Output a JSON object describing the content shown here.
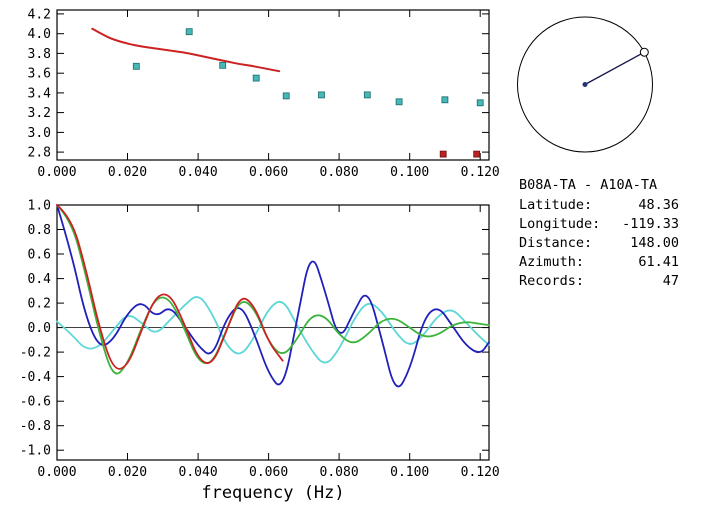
{
  "info": {
    "pair": "B08A-TA - A10A-TA",
    "rows": [
      {
        "label": "Latitude:",
        "value": "48.36"
      },
      {
        "label": "Longitude:",
        "value": "-119.33"
      },
      {
        "label": "Distance:",
        "value": "148.00"
      },
      {
        "label": "Azimuth:",
        "value": "61.41"
      },
      {
        "label": "Records:",
        "value": "47"
      }
    ]
  },
  "chart_data": [
    {
      "type": "scatter",
      "title": "",
      "xlabel": "",
      "ylabel": "",
      "xlim": [
        0,
        0.1225
      ],
      "ylim": [
        2.72,
        4.24
      ],
      "xticks": [
        0,
        0.02,
        0.04,
        0.06,
        0.08,
        0.1,
        0.12
      ],
      "xtick_labels": [
        "0.000",
        "0.020",
        "0.040",
        "0.060",
        "0.080",
        "0.100",
        "0.120"
      ],
      "yticks": [
        2.8,
        3.0,
        3.2,
        3.4,
        3.6,
        3.8,
        4.0,
        4.2
      ],
      "ytick_labels": [
        "2.8",
        "3.0",
        "3.2",
        "3.4",
        "3.6",
        "3.8",
        "4.0",
        "4.2"
      ],
      "grid": false,
      "series": [
        {
          "name": "velocity-picks",
          "kind": "scatter",
          "marker": "square",
          "color": "#46b8b8",
          "edge": "#1c6a6a",
          "x": [
            0.0225,
            0.0375,
            0.047,
            0.0565,
            0.065,
            0.075,
            0.088,
            0.097,
            0.11,
            0.12
          ],
          "y": [
            3.67,
            4.02,
            3.68,
            3.55,
            3.37,
            3.38,
            3.38,
            3.31,
            3.33,
            3.3
          ]
        },
        {
          "name": "reference-dispersion-curve",
          "kind": "line",
          "color": "#cc2222",
          "width": 2,
          "x": [
            0.01,
            0.013,
            0.016,
            0.02,
            0.024,
            0.028,
            0.032,
            0.036,
            0.04,
            0.044,
            0.048,
            0.052,
            0.056,
            0.06,
            0.063
          ],
          "y": [
            4.05,
            3.99,
            3.94,
            3.9,
            3.87,
            3.85,
            3.83,
            3.81,
            3.78,
            3.75,
            3.72,
            3.69,
            3.67,
            3.64,
            3.62
          ]
        },
        {
          "name": "rejected-picks",
          "kind": "scatter",
          "marker": "square",
          "color": "#bb2222",
          "edge": "#701010",
          "x": [
            0.1095,
            0.119
          ],
          "y": [
            2.78,
            2.78
          ]
        }
      ]
    },
    {
      "type": "line",
      "title": "",
      "xlabel": "frequency (Hz)",
      "ylabel": "",
      "xlim": [
        0,
        0.1225
      ],
      "ylim": [
        -1.08,
        1.0
      ],
      "xticks": [
        0,
        0.02,
        0.04,
        0.06,
        0.08,
        0.1,
        0.12
      ],
      "xtick_labels": [
        "0.000",
        "0.020",
        "0.040",
        "0.060",
        "0.080",
        "0.100",
        "0.120"
      ],
      "yticks": [
        -1.0,
        -0.8,
        -0.6,
        -0.4,
        -0.2,
        0.0,
        0.2,
        0.4,
        0.6,
        0.8,
        1.0
      ],
      "ytick_labels": [
        "-1.0",
        "-0.8",
        "-0.6",
        "-0.4",
        "-0.2",
        "0.0",
        "0.2",
        "0.4",
        "0.6",
        "0.8",
        "1.0"
      ],
      "zero_line": true,
      "grid": false,
      "series": [
        {
          "name": "waveform-cyan",
          "kind": "line",
          "color": "#5cd6d6",
          "width": 1.8,
          "x": [
            0,
            0.004,
            0.008,
            0.012,
            0.016,
            0.02,
            0.024,
            0.028,
            0.032,
            0.036,
            0.04,
            0.044,
            0.048,
            0.052,
            0.056,
            0.06,
            0.064,
            0.068,
            0.072,
            0.076,
            0.08,
            0.084,
            0.088,
            0.092,
            0.096,
            0.1,
            0.104,
            0.108,
            0.112,
            0.116,
            0.12,
            0.1225
          ],
          "y": [
            0.05,
            -0.05,
            -0.18,
            -0.16,
            -0.02,
            0.12,
            0.04,
            -0.06,
            0.06,
            0.18,
            0.28,
            0.12,
            -0.15,
            -0.24,
            -0.08,
            0.16,
            0.24,
            0.02,
            -0.18,
            -0.32,
            -0.18,
            0.06,
            0.22,
            0.14,
            -0.04,
            -0.16,
            -0.06,
            0.1,
            0.16,
            0.04,
            -0.08,
            -0.14
          ]
        },
        {
          "name": "waveform-blue",
          "kind": "line",
          "color": "#2020bb",
          "width": 1.8,
          "x": [
            0,
            0.004,
            0.008,
            0.012,
            0.016,
            0.02,
            0.024,
            0.028,
            0.032,
            0.036,
            0.04,
            0.044,
            0.048,
            0.052,
            0.056,
            0.06,
            0.064,
            0.068,
            0.072,
            0.076,
            0.08,
            0.084,
            0.088,
            0.092,
            0.096,
            0.1,
            0.104,
            0.108,
            0.112,
            0.116,
            0.12,
            0.1225
          ],
          "y": [
            1.0,
            0.62,
            0.1,
            -0.17,
            -0.1,
            0.12,
            0.22,
            0.08,
            0.18,
            0.02,
            -0.15,
            -0.25,
            0.08,
            0.2,
            -0.05,
            -0.38,
            -0.52,
            0.05,
            0.65,
            0.3,
            -0.12,
            0.12,
            0.33,
            -0.08,
            -0.55,
            -0.35,
            0.08,
            0.18,
            0.02,
            -0.15,
            -0.22,
            -0.12
          ]
        },
        {
          "name": "waveform-green",
          "kind": "line",
          "color": "#3cb43c",
          "width": 1.8,
          "x": [
            0,
            0.004,
            0.008,
            0.012,
            0.016,
            0.02,
            0.024,
            0.028,
            0.032,
            0.036,
            0.04,
            0.044,
            0.048,
            0.052,
            0.056,
            0.06,
            0.064,
            0.068,
            0.072,
            0.076,
            0.08,
            0.084,
            0.088,
            0.092,
            0.096,
            0.1,
            0.104,
            0.108,
            0.112,
            0.116,
            0.12,
            0.1225
          ],
          "y": [
            1.0,
            0.88,
            0.45,
            -0.05,
            -0.42,
            -0.3,
            0.0,
            0.25,
            0.24,
            0.0,
            -0.28,
            -0.3,
            -0.02,
            0.24,
            0.16,
            -0.12,
            -0.24,
            -0.1,
            0.1,
            0.1,
            -0.06,
            -0.14,
            -0.06,
            0.06,
            0.08,
            0.0,
            -0.08,
            -0.06,
            0.02,
            0.05,
            0.03,
            0.02
          ]
        },
        {
          "name": "waveform-red",
          "kind": "line",
          "color": "#cc2222",
          "width": 1.8,
          "x": [
            0,
            0.004,
            0.008,
            0.012,
            0.016,
            0.02,
            0.024,
            0.028,
            0.032,
            0.036,
            0.04,
            0.044,
            0.048,
            0.052,
            0.056,
            0.06,
            0.064
          ],
          "y": [
            1.0,
            0.9,
            0.5,
            0.0,
            -0.35,
            -0.32,
            -0.02,
            0.26,
            0.28,
            0.04,
            -0.26,
            -0.31,
            -0.03,
            0.27,
            0.18,
            -0.12,
            -0.27
          ]
        }
      ]
    },
    {
      "type": "dial",
      "azimuth_deg": 61.41
    }
  ]
}
